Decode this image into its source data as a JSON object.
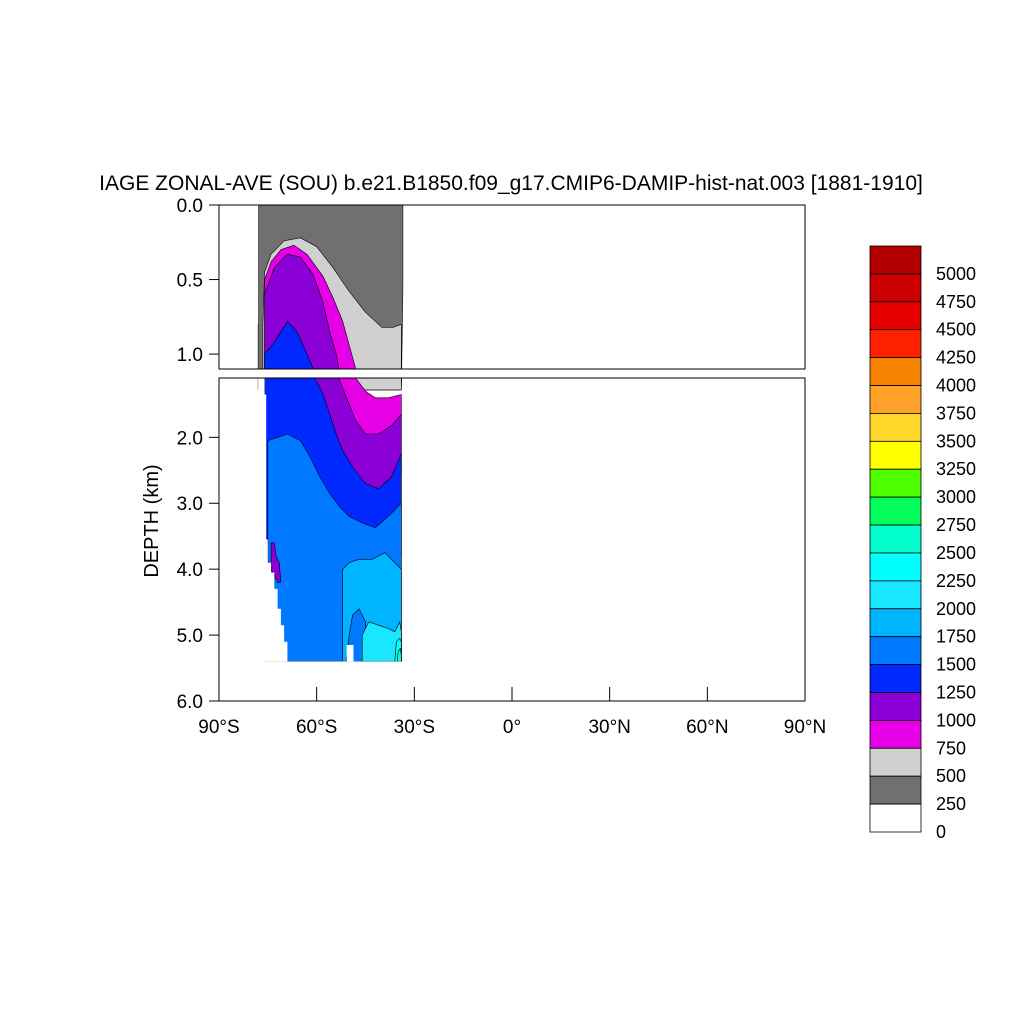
{
  "chart_data": {
    "type": "heatmap",
    "subtype": "filled-contour",
    "title": "IAGE ZONAL-AVE (SOU) b.e21.B1850.f09_g17.CMIP6-DAMIP-hist-nat.003 [1881-1910]",
    "ylabel": "DEPTH (km)",
    "xlabel": "",
    "x_ticks": [
      "90°S",
      "60°S",
      "30°S",
      "0°",
      "30°N",
      "60°N",
      "90°N"
    ],
    "x_tick_values": [
      -90,
      -60,
      -30,
      0,
      30,
      60,
      90
    ],
    "xlim": [
      -90,
      90
    ],
    "upper_panel": {
      "ylim": [
        0,
        1.1
      ],
      "y_ticks": [
        "0.0",
        "0.5",
        "1.0"
      ],
      "y_tick_values": [
        0,
        0.5,
        1.0
      ]
    },
    "lower_panel": {
      "ylim": [
        1.1,
        6.0
      ],
      "y_ticks": [
        "2.0",
        "3.0",
        "4.0",
        "5.0",
        "6.0"
      ],
      "y_tick_values": [
        2,
        3,
        4,
        5,
        6
      ]
    },
    "data_extent": {
      "lat_min": -78,
      "lat_max": -34,
      "depth_max_km": 5.4
    },
    "colorbar": {
      "levels": [
        "0",
        "250",
        "500",
        "750",
        "1000",
        "1250",
        "1500",
        "1750",
        "2000",
        "2250",
        "2500",
        "2750",
        "3000",
        "3250",
        "3500",
        "3750",
        "4000",
        "4250",
        "4500",
        "4750",
        "5000"
      ],
      "colors": [
        "#ffffff",
        "#707070",
        "#d0d0d0",
        "#e600e6",
        "#8c00d8",
        "#0028ff",
        "#0078ff",
        "#00b4ff",
        "#19e6ff",
        "#00ffff",
        "#00ffcc",
        "#00ff5a",
        "#50ff00",
        "#ffff00",
        "#ffd728",
        "#ffa028",
        "#f58200",
        "#ff2000",
        "#e60000",
        "#cc0000",
        "#b40000"
      ]
    },
    "regions": [
      {
        "band": "250",
        "points": [
          [
            -78,
            0
          ],
          [
            -33.5,
            0
          ],
          [
            -33.5,
            0.55
          ],
          [
            -34,
            1.28
          ],
          [
            -78,
            1.28
          ]
        ]
      },
      {
        "band": "500",
        "points": [
          [
            -76.5,
            1.28
          ],
          [
            -76.5,
            0.8
          ],
          [
            -76,
            0.45
          ],
          [
            -74,
            0.33
          ],
          [
            -70,
            0.24
          ],
          [
            -65,
            0.22
          ],
          [
            -60,
            0.28
          ],
          [
            -55,
            0.42
          ],
          [
            -50,
            0.58
          ],
          [
            -45,
            0.72
          ],
          [
            -40,
            0.82
          ],
          [
            -36.5,
            0.82
          ],
          [
            -34,
            0.8
          ],
          [
            -34,
            1.28
          ]
        ]
      },
      {
        "band": "750",
        "points": [
          [
            -76,
            1.28
          ],
          [
            -76,
            0.5
          ],
          [
            -74,
            0.38
          ],
          [
            -71,
            0.3
          ],
          [
            -67,
            0.27
          ],
          [
            -63,
            0.33
          ],
          [
            -58,
            0.48
          ],
          [
            -55,
            0.62
          ],
          [
            -52,
            0.78
          ],
          [
            -50,
            0.94
          ],
          [
            -48,
            1.1
          ],
          [
            -45,
            1.3
          ],
          [
            -42,
            1.4
          ],
          [
            -38,
            1.4
          ],
          [
            -34,
            1.35
          ],
          [
            -34,
            2.6
          ],
          [
            -76,
            2.6
          ]
        ]
      },
      {
        "band": "1000",
        "points": [
          [
            -76,
            2.6
          ],
          [
            -76,
            0.6
          ],
          [
            -73,
            0.42
          ],
          [
            -69,
            0.33
          ],
          [
            -65,
            0.35
          ],
          [
            -61,
            0.47
          ],
          [
            -58,
            0.66
          ],
          [
            -56,
            0.85
          ],
          [
            -54,
            1.0
          ],
          [
            -52,
            1.25
          ],
          [
            -50,
            1.5
          ],
          [
            -48,
            1.75
          ],
          [
            -45,
            1.95
          ],
          [
            -41,
            1.95
          ],
          [
            -37,
            1.82
          ],
          [
            -34,
            1.65
          ],
          [
            -34,
            3.8
          ],
          [
            -76,
            3.8
          ]
        ]
      },
      {
        "band": "1250",
        "points": [
          [
            -76,
            3.8
          ],
          [
            -76,
            1.0
          ],
          [
            -73,
            0.92
          ],
          [
            -69,
            0.78
          ],
          [
            -66,
            0.85
          ],
          [
            -63,
            1.0
          ],
          [
            -60,
            1.15
          ],
          [
            -58,
            1.35
          ],
          [
            -56,
            1.65
          ],
          [
            -54,
            1.95
          ],
          [
            -52,
            2.2
          ],
          [
            -49,
            2.45
          ],
          [
            -45,
            2.7
          ],
          [
            -41,
            2.78
          ],
          [
            -37,
            2.6
          ],
          [
            -34,
            2.25
          ],
          [
            -34,
            5.4
          ],
          [
            -76,
            5.4
          ]
        ]
      },
      {
        "band": "1500",
        "points": [
          [
            -75,
            5.4
          ],
          [
            -75,
            2.05
          ],
          [
            -72,
            2.0
          ],
          [
            -69,
            1.95
          ],
          [
            -65,
            2.05
          ],
          [
            -62,
            2.3
          ],
          [
            -59,
            2.6
          ],
          [
            -56,
            2.85
          ],
          [
            -53,
            3.05
          ],
          [
            -50,
            3.2
          ],
          [
            -46,
            3.3
          ],
          [
            -42,
            3.37
          ],
          [
            -38,
            3.2
          ],
          [
            -34,
            3.0
          ],
          [
            -34,
            5.4
          ]
        ]
      },
      {
        "band": "1750",
        "points": [
          [
            -52,
            5.4
          ],
          [
            -52,
            4.0
          ],
          [
            -50,
            3.9
          ],
          [
            -47,
            3.85
          ],
          [
            -43,
            3.85
          ],
          [
            -39,
            3.75
          ],
          [
            -36,
            3.9
          ],
          [
            -34,
            4.0
          ],
          [
            -34,
            5.4
          ],
          [
            -45,
            5.4
          ],
          [
            -45,
            4.8
          ],
          [
            -47,
            4.6
          ],
          [
            -49,
            4.7
          ],
          [
            -50,
            5.0
          ],
          [
            -51,
            5.4
          ]
        ]
      },
      {
        "band": "2000",
        "points": [
          [
            -46,
            5.4
          ],
          [
            -46,
            5.0
          ],
          [
            -44,
            4.8
          ],
          [
            -41,
            4.85
          ],
          [
            -38,
            4.9
          ],
          [
            -36,
            4.95
          ],
          [
            -34.5,
            4.8
          ],
          [
            -34,
            4.95
          ],
          [
            -34,
            5.4
          ]
        ]
      },
      {
        "band": "2250",
        "points": [
          [
            -36,
            5.4
          ],
          [
            -35.5,
            5.1
          ],
          [
            -34.5,
            5.05
          ],
          [
            -34,
            5.1
          ],
          [
            -34,
            5.4
          ]
        ]
      },
      {
        "band": "2500",
        "points": [
          [
            -35.2,
            5.4
          ],
          [
            -35,
            5.25
          ],
          [
            -34.3,
            5.2
          ],
          [
            -34,
            5.3
          ],
          [
            -34,
            5.4
          ]
        ]
      },
      {
        "band": "750",
        "points": [
          [
            -75,
            3.9
          ],
          [
            -74,
            3.9
          ],
          [
            -74,
            4.1
          ],
          [
            -75,
            4.1
          ]
        ]
      },
      {
        "band": "1000",
        "points": [
          [
            -74,
            3.6
          ],
          [
            -73,
            3.6
          ],
          [
            -72.5,
            3.8
          ],
          [
            -71.5,
            3.9
          ],
          [
            -71,
            4.2
          ],
          [
            -72,
            4.2
          ],
          [
            -73,
            4.1
          ],
          [
            -74,
            4.0
          ]
        ]
      }
    ],
    "masks": [
      {
        "panel": "upper",
        "points": [
          [
            -78,
            0
          ],
          [
            -78,
            0.8
          ],
          [
            -78.4,
            0.8
          ],
          [
            -78.4,
            0
          ]
        ]
      },
      {
        "panel": "lower",
        "points": [
          [
            -78,
            1.1
          ],
          [
            -76,
            1.1
          ],
          [
            -76,
            1.35
          ],
          [
            -75.5,
            1.35
          ],
          [
            -75.5,
            3.55
          ],
          [
            -75,
            3.55
          ],
          [
            -75,
            3.9
          ],
          [
            -74,
            3.9
          ],
          [
            -74,
            4.05
          ],
          [
            -73,
            4.05
          ],
          [
            -73,
            4.3
          ],
          [
            -72,
            4.3
          ],
          [
            -72,
            4.6
          ],
          [
            -71,
            4.6
          ],
          [
            -71,
            4.85
          ],
          [
            -70,
            4.85
          ],
          [
            -70,
            5.1
          ],
          [
            -69,
            5.1
          ],
          [
            -69,
            5.4
          ],
          [
            -78,
            5.4
          ]
        ]
      },
      {
        "panel": "lower",
        "points": [
          [
            -50.8,
            5.15
          ],
          [
            -48.7,
            5.15
          ],
          [
            -48.7,
            5.4
          ],
          [
            -50.8,
            5.4
          ]
        ]
      },
      {
        "panel": "lower",
        "points": [
          [
            -78,
            5.4
          ],
          [
            -34,
            5.4
          ],
          [
            -34,
            6.0
          ],
          [
            -78,
            6.0
          ]
        ]
      }
    ]
  }
}
